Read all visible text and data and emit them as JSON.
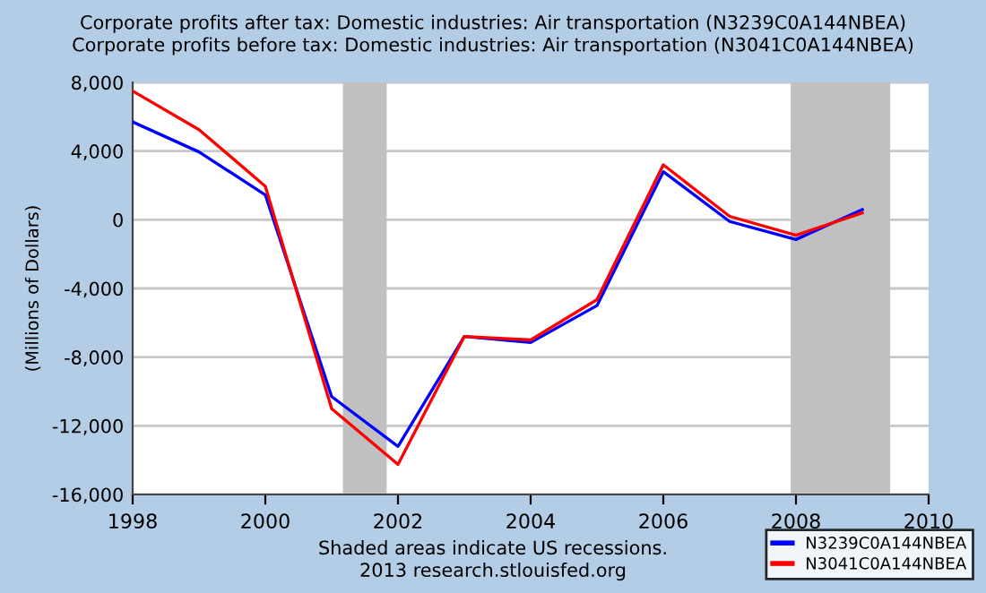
{
  "chart_data": {
    "type": "line",
    "title": "Corporate profits after tax: Domestic industries: Air transportation (N3239C0A144NBEA)\nCorporate profits before tax: Domestic industries: Air transportation (N3041C0A144NBEA)",
    "ylabel": "(Millions of Dollars)",
    "x": [
      1998,
      1999,
      2000,
      2001,
      2002,
      2003,
      2004,
      2005,
      2006,
      2007,
      2008,
      2009
    ],
    "series": [
      {
        "name": "N3239C0A144NBEA",
        "color": "#0000ff",
        "values": [
          5700,
          3950,
          1450,
          -10300,
          -13200,
          -6800,
          -7150,
          -5000,
          2800,
          -100,
          -1150,
          600
        ]
      },
      {
        "name": "N3041C0A144NBEA",
        "color": "#ff0000",
        "values": [
          7500,
          5250,
          1950,
          -11000,
          -14250,
          -6800,
          -7000,
          -4650,
          3200,
          200,
          -900,
          400
        ]
      }
    ],
    "xlim": [
      1998,
      2010
    ],
    "xticks": [
      1998,
      2000,
      2002,
      2004,
      2006,
      2008,
      2010
    ],
    "ylim": [
      -16000,
      8000
    ],
    "yticks": [
      {
        "value": -16000,
        "label": "-16,000"
      },
      {
        "value": -12000,
        "label": "-12,000"
      },
      {
        "value": -8000,
        "label": "-8,000"
      },
      {
        "value": -4000,
        "label": "-4,000"
      },
      0,
      {
        "value": 4000,
        "label": "4,000"
      },
      {
        "value": 8000,
        "label": "8,000"
      }
    ],
    "bands": [
      {
        "axis": "x",
        "from": 2001.17,
        "to": 2001.83,
        "color": "#c0c0c0"
      },
      {
        "axis": "x",
        "from": 2007.92,
        "to": 2009.42,
        "color": "#c0c0c0"
      }
    ],
    "grid": "y",
    "legend": "bottom right",
    "line_style": "solid",
    "marker": "none",
    "annotations": [
      "Shaded areas indicate US recessions.\n2013 research.stlouisfed.org"
    ]
  }
}
